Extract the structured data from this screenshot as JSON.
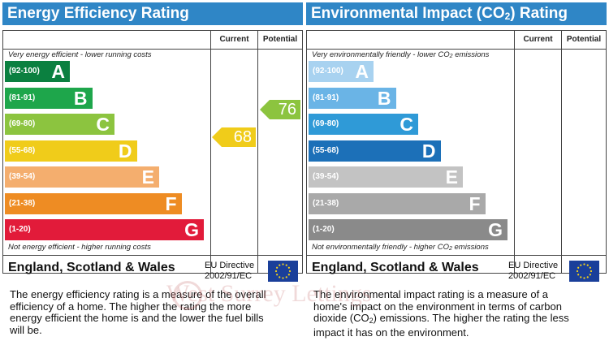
{
  "chart_data": [
    {
      "type": "bar",
      "title": "Energy Efficiency Rating",
      "columns": [
        "Current",
        "Potential"
      ],
      "top_note": "Very energy efficient - lower running costs",
      "bottom_note": "Not energy efficient - higher running costs",
      "bands": [
        {
          "range": "(92-100)",
          "letter": "A",
          "color": "#0b8040"
        },
        {
          "range": "(81-91)",
          "letter": "B",
          "color": "#1ea64b"
        },
        {
          "range": "(69-80)",
          "letter": "C",
          "color": "#8cc43f"
        },
        {
          "range": "(55-68)",
          "letter": "D",
          "color": "#f0cc1a"
        },
        {
          "range": "(39-54)",
          "letter": "E",
          "color": "#f4ae6e"
        },
        {
          "range": "(21-38)",
          "letter": "F",
          "color": "#ee8c23"
        },
        {
          "range": "(1-20)",
          "letter": "G",
          "color": "#e21b3a"
        }
      ],
      "current": 68,
      "potential": 76,
      "current_band": "D",
      "potential_band": "C",
      "current_color": "#f0cc1a",
      "potential_color": "#8cc43f",
      "footer": "England, Scotland & Wales",
      "directive_1": "EU Directive",
      "directive_2": "2002/91/EC"
    },
    {
      "type": "bar",
      "title_pre": "Environmental Impact (CO",
      "title_sub": "2",
      "title_post": ") Rating",
      "columns": [
        "Current",
        "Potential"
      ],
      "top_note_pre": "Very environmentally friendly - lower CO",
      "top_note_sub": "2",
      "top_note_post": " emissions",
      "bottom_note_pre": "Not environmentally friendly - higher CO",
      "bottom_note_sub": "2",
      "bottom_note_post": " emissions",
      "bands": [
        {
          "range": "(92-100)",
          "letter": "A",
          "color": "#a8d2f0"
        },
        {
          "range": "(81-91)",
          "letter": "B",
          "color": "#6ab4e6"
        },
        {
          "range": "(69-80)",
          "letter": "C",
          "color": "#2f9ad7"
        },
        {
          "range": "(55-68)",
          "letter": "D",
          "color": "#1c70b8"
        },
        {
          "range": "(39-54)",
          "letter": "E",
          "color": "#c3c3c3"
        },
        {
          "range": "(21-38)",
          "letter": "F",
          "color": "#a9a9a9"
        },
        {
          "range": "(1-20)",
          "letter": "G",
          "color": "#8a8a8a"
        }
      ],
      "footer": "England, Scotland & Wales",
      "directive_1": "EU Directive",
      "directive_2": "2002/91/EC"
    }
  ],
  "descriptions": {
    "energy": "The energy efficiency rating is a measure of the overall efficiency of a home. The higher the rating the more energy efficient the home is and the lower the fuel bills will be.",
    "env_pre": "The environmental impact rating is a measure of a home's impact on the environment in terms of carbon dioxide (CO",
    "env_sub": "2",
    "env_post": ") emissions. The higher the rating the less impact it has on the environment."
  },
  "watermark": "West Surrey Lettings",
  "icons": {
    "eu_flag": "eu-flag-icon",
    "watermark_logo": "ws-logo-icon"
  }
}
